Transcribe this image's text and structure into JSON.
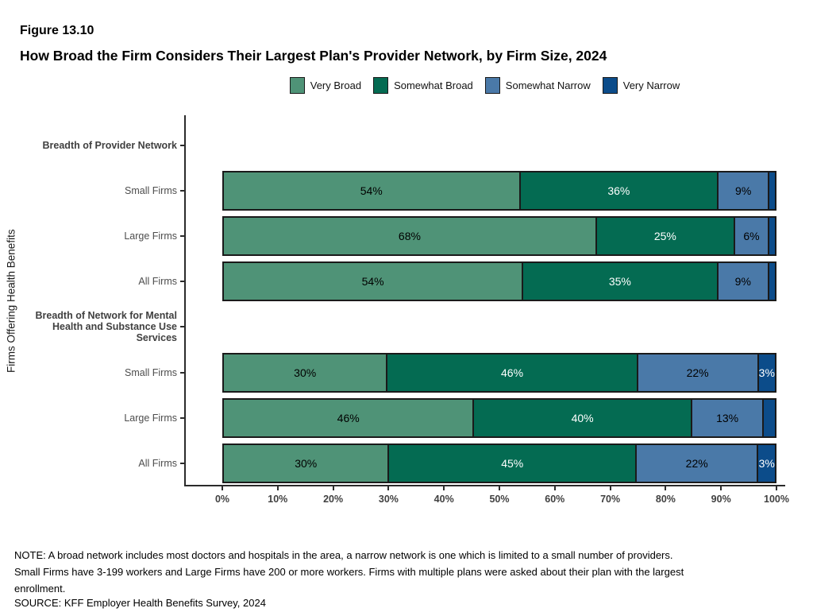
{
  "figure_label": "Figure 13.10",
  "title": "How Broad the Firm Considers Their Largest Plan's Provider Network, by Firm Size, 2024",
  "ylabel": "Firms Offering Health Benefits",
  "legend": [
    {
      "label": "Very Broad",
      "color": "#4f9377"
    },
    {
      "label": "Somewhat Broad",
      "color": "#046b52"
    },
    {
      "label": "Somewhat Narrow",
      "color": "#4a79a8"
    },
    {
      "label": "Very Narrow",
      "color": "#0c4c8a"
    }
  ],
  "colors": {
    "series": [
      "#4f9377",
      "#046b52",
      "#4a79a8",
      "#0c4c8a"
    ],
    "segment_text": [
      "#000000",
      "#ffffff",
      "#000000",
      "#ffffff"
    ],
    "bar_border": "#1a1a1a",
    "axis": "#2b2b2b",
    "tick_label": "#404040"
  },
  "chart_data": {
    "type": "bar",
    "orientation": "horizontal",
    "stacked": true,
    "xlim": [
      0,
      100
    ],
    "x_ticks": [
      "0%",
      "10%",
      "20%",
      "30%",
      "40%",
      "50%",
      "60%",
      "70%",
      "80%",
      "90%",
      "100%"
    ],
    "series_names": [
      "Very Broad",
      "Somewhat Broad",
      "Somewhat Narrow",
      "Very Narrow"
    ],
    "rows": [
      {
        "type": "header",
        "label": "Breadth of Provider Network",
        "lines": [
          "Breadth of Provider Network"
        ]
      },
      {
        "type": "bar",
        "label": "Small Firms",
        "segments": [
          {
            "value": 54,
            "label": "54%"
          },
          {
            "value": 36,
            "label": "36%"
          },
          {
            "value": 9,
            "label": "9%"
          },
          {
            "value": 1,
            "label": ""
          }
        ]
      },
      {
        "type": "bar",
        "label": "Large Firms",
        "segments": [
          {
            "value": 68,
            "label": "68%"
          },
          {
            "value": 25,
            "label": "25%"
          },
          {
            "value": 6,
            "label": "6%"
          },
          {
            "value": 1,
            "label": ""
          }
        ]
      },
      {
        "type": "bar",
        "label": "All Firms",
        "segments": [
          {
            "value": 54,
            "label": "54%"
          },
          {
            "value": 35,
            "label": "35%"
          },
          {
            "value": 9,
            "label": "9%"
          },
          {
            "value": 1,
            "label": ""
          }
        ]
      },
      {
        "type": "header",
        "label": "Breadth of Network for Mental Health and Substance Use Services",
        "lines": [
          "Breadth of Network for Mental",
          "Health and Substance Use",
          "Services"
        ]
      },
      {
        "type": "bar",
        "label": "Small Firms",
        "segments": [
          {
            "value": 30,
            "label": "30%"
          },
          {
            "value": 46,
            "label": "46%"
          },
          {
            "value": 22,
            "label": "22%"
          },
          {
            "value": 3,
            "label": "3%"
          }
        ]
      },
      {
        "type": "bar",
        "label": "Large Firms",
        "segments": [
          {
            "value": 46,
            "label": "46%"
          },
          {
            "value": 40,
            "label": "40%"
          },
          {
            "value": 13,
            "label": "13%"
          },
          {
            "value": 2,
            "label": ""
          }
        ]
      },
      {
        "type": "bar",
        "label": "All Firms",
        "segments": [
          {
            "value": 30,
            "label": "30%"
          },
          {
            "value": 45,
            "label": "45%"
          },
          {
            "value": 22,
            "label": "22%"
          },
          {
            "value": 3,
            "label": "3%"
          }
        ]
      }
    ]
  },
  "note_lines": [
    "NOTE: A broad network includes most doctors and hospitals in the area, a narrow network is one which is limited to a small number of providers.",
    "Small Firms have 3-199 workers and Large Firms have 200 or more workers.  Firms with multiple plans were asked about their plan with the largest",
    "enrollment."
  ],
  "source": "SOURCE: KFF Employer Health Benefits Survey, 2024"
}
